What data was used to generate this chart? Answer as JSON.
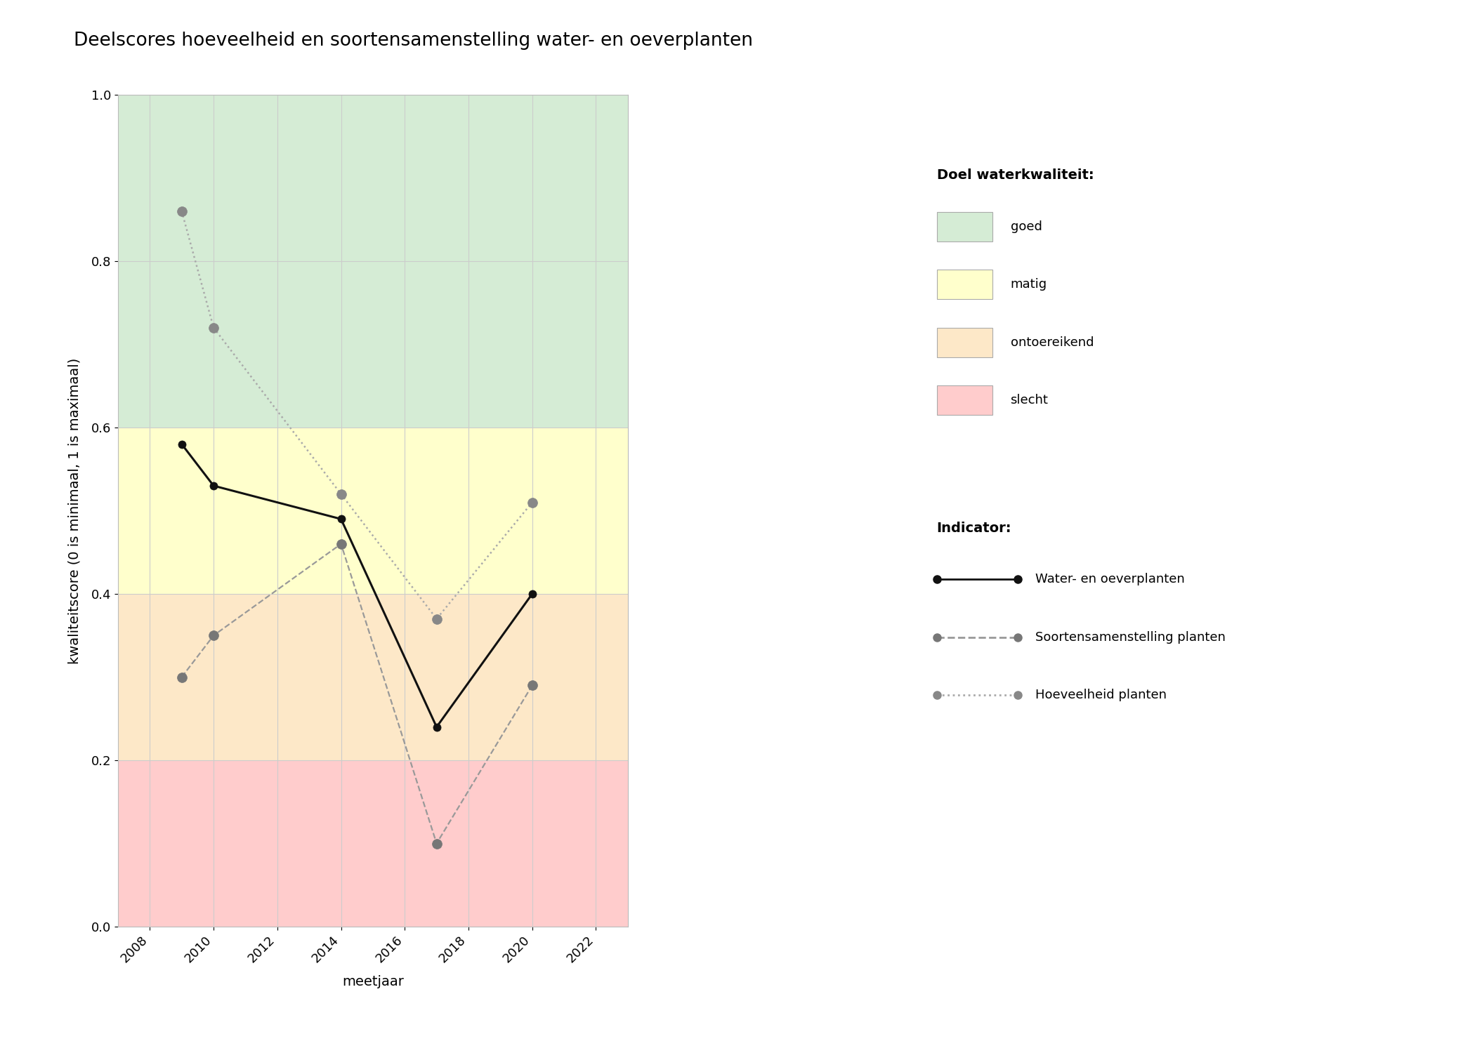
{
  "title": "Deelscores hoeveelheid en soortensamenstelling water- en oeverplanten",
  "xlabel": "meetjaar",
  "ylabel": "kwaliteitscore (0 is minimaal, 1 is maximaal)",
  "xlim": [
    2007,
    2023
  ],
  "ylim": [
    0.0,
    1.0
  ],
  "xticks": [
    2008,
    2010,
    2012,
    2014,
    2016,
    2018,
    2020,
    2022
  ],
  "yticks": [
    0.0,
    0.2,
    0.4,
    0.6,
    0.8,
    1.0
  ],
  "background_color": "#ffffff",
  "bg_bands": [
    {
      "ymin": 0.6,
      "ymax": 1.0,
      "color": "#d5ecd5",
      "label": "goed"
    },
    {
      "ymin": 0.4,
      "ymax": 0.6,
      "color": "#ffffcc",
      "label": "matig"
    },
    {
      "ymin": 0.2,
      "ymax": 0.4,
      "color": "#fde8c8",
      "label": "ontoereikend"
    },
    {
      "ymin": 0.0,
      "ymax": 0.2,
      "color": "#ffcccc",
      "label": "slecht"
    }
  ],
  "series": [
    {
      "name": "Water- en oeverplanten",
      "x": [
        2009,
        2010,
        2014,
        2017,
        2020
      ],
      "y": [
        0.58,
        0.53,
        0.49,
        0.24,
        0.4
      ],
      "color": "#111111",
      "linestyle": "solid",
      "linewidth": 2.2,
      "marker": "o",
      "markersize": 8,
      "markerfacecolor": "#111111",
      "markeredgecolor": "#111111",
      "zorder": 5
    },
    {
      "name": "Soortensamenstelling planten",
      "x": [
        2009,
        2010,
        2014,
        2017,
        2020
      ],
      "y": [
        0.3,
        0.35,
        0.46,
        0.1,
        0.29
      ],
      "color": "#999999",
      "linestyle": "dashed",
      "linewidth": 1.6,
      "marker": "o",
      "markersize": 10,
      "markerfacecolor": "#777777",
      "markeredgecolor": "#777777",
      "zorder": 4
    },
    {
      "name": "Hoeveelheid planten",
      "x": [
        2009,
        2010,
        2014,
        2017,
        2020
      ],
      "y": [
        0.86,
        0.72,
        0.52,
        0.37,
        0.51
      ],
      "color": "#aaaaaa",
      "linestyle": "dotted",
      "linewidth": 1.8,
      "marker": "o",
      "markersize": 10,
      "markerfacecolor": "#888888",
      "markeredgecolor": "#888888",
      "zorder": 4
    }
  ],
  "legend_title_quality": "Doel waterkwaliteit:",
  "legend_title_indicator": "Indicator:",
  "grid_color": "#cccccc",
  "title_fontsize": 19,
  "axis_label_fontsize": 14,
  "tick_fontsize": 13,
  "legend_fontsize": 13
}
